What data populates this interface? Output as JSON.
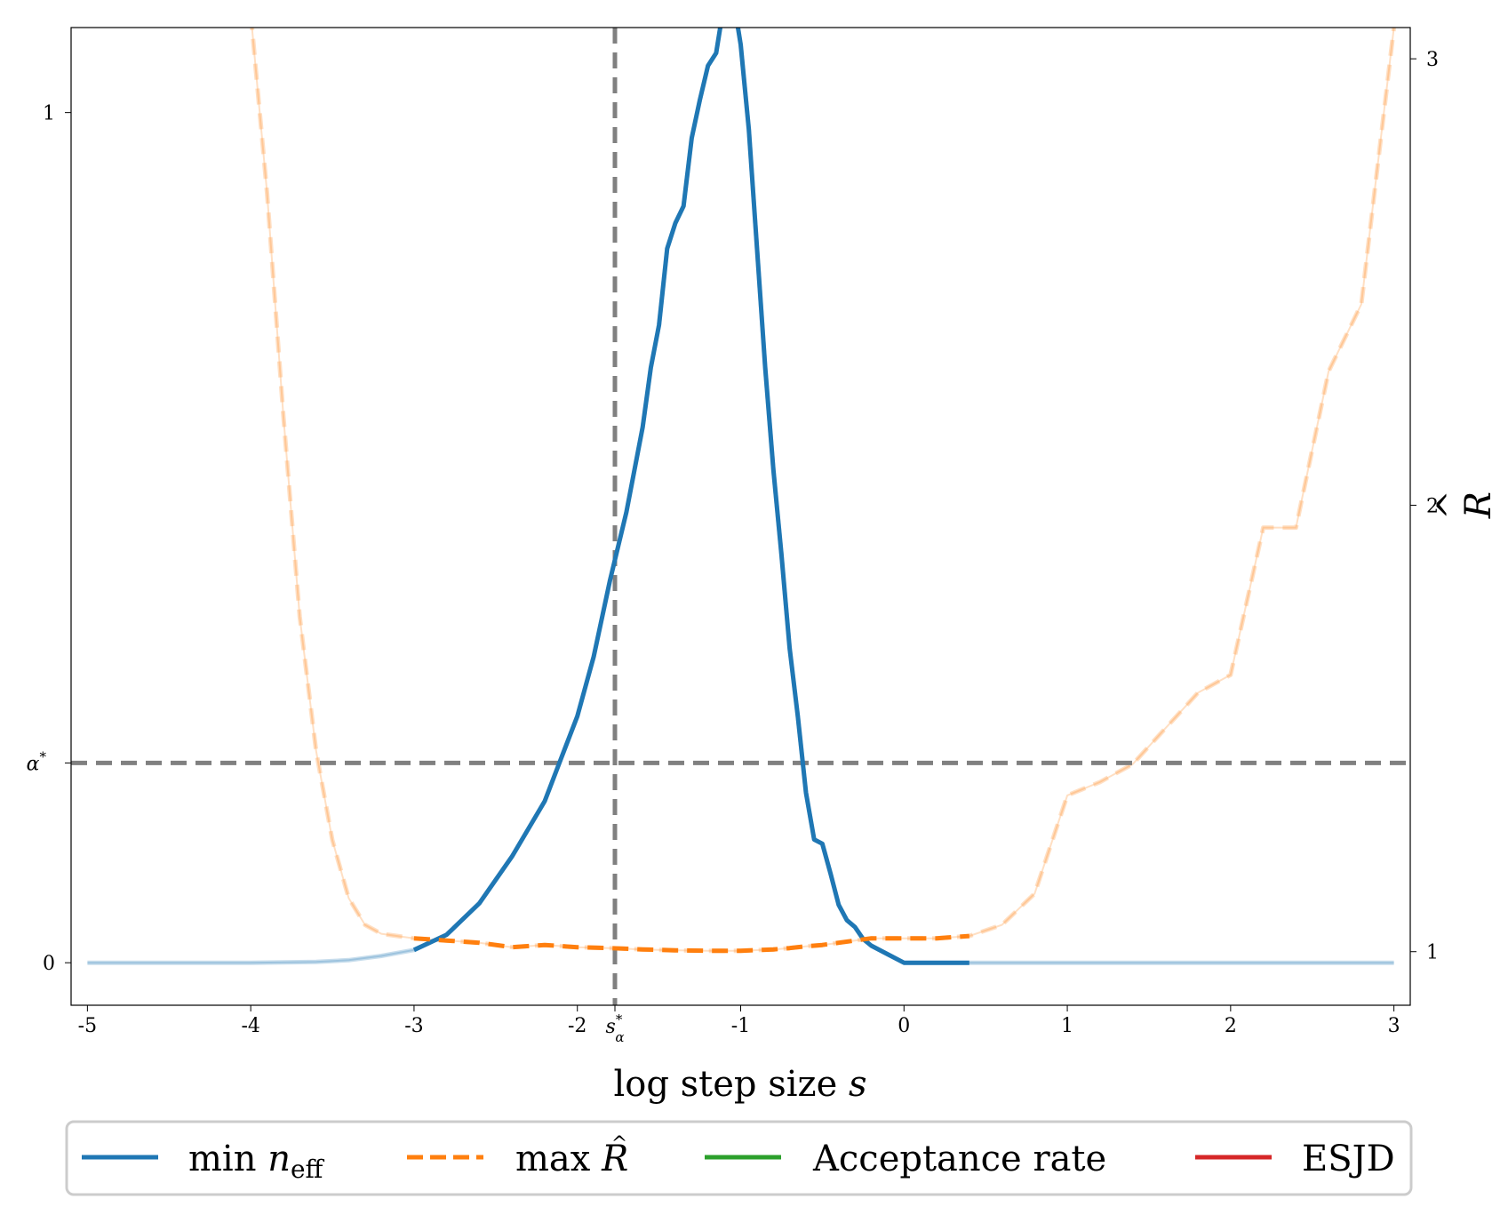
{
  "chart_data": {
    "type": "line",
    "xlabel": "log step size",
    "xlabel_symbol": "s",
    "right_axis_label": "R",
    "x_ticks": [
      "-5",
      "-4",
      "-3",
      "-2",
      "-1",
      "0",
      "1",
      "2",
      "3"
    ],
    "x_special_tick": {
      "value": -1.77,
      "base": "s",
      "sub": "α",
      "sup": "*"
    },
    "left_ticks": [
      "0",
      "1"
    ],
    "left_special_tick": {
      "value": 0.235,
      "base": "α",
      "sup": "*"
    },
    "right_ticks": [
      "1",
      "2",
      "3"
    ],
    "xlim": [
      -5.1,
      3.1
    ],
    "ylim_left": [
      -0.05,
      1.1
    ],
    "ylim_right": [
      0.88,
      3.07
    ],
    "reference_lines": [
      {
        "orientation": "vertical",
        "x": -1.77,
        "style": "dashed",
        "color": "#808080"
      },
      {
        "orientation": "horizontal",
        "y": 0.235,
        "style": "dashed",
        "color": "#808080"
      }
    ],
    "colors": {
      "neff": "#1f77b4",
      "rhat": "#ff7f0e",
      "acceptance": "#2ca02c",
      "esjd": "#d62728"
    },
    "legend": {
      "placement": "bottom",
      "entries": [
        {
          "text": "min ",
          "math": "n",
          "sub": "eff",
          "color": "#1f77b4",
          "style": "solid"
        },
        {
          "text": "max ",
          "math": "R",
          "hat": true,
          "color": "#ff7f0e",
          "style": "dashed"
        },
        {
          "text": "Acceptance rate",
          "color": "#2ca02c",
          "style": "solid"
        },
        {
          "text": "ESJD",
          "color": "#d62728",
          "style": "solid"
        }
      ]
    },
    "series": [
      {
        "name": "min n_eff",
        "axis": "left",
        "highlight_x_range": [
          -3.0,
          0.4
        ],
        "x": [
          -5.0,
          -4.0,
          -3.6,
          -3.4,
          -3.2,
          -3.0,
          -2.8,
          -2.6,
          -2.4,
          -2.2,
          -2.1,
          -2.0,
          -1.9,
          -1.8,
          -1.7,
          -1.6,
          -1.55,
          -1.5,
          -1.45,
          -1.4,
          -1.35,
          -1.3,
          -1.25,
          -1.2,
          -1.15,
          -1.1,
          -1.05,
          -1.0,
          -0.95,
          -0.9,
          -0.85,
          -0.8,
          -0.75,
          -0.7,
          -0.65,
          -0.6,
          -0.55,
          -0.5,
          -0.45,
          -0.4,
          -0.35,
          -0.3,
          -0.25,
          -0.2,
          -0.1,
          0.0,
          0.2,
          0.4,
          0.8,
          1.5,
          3.0
        ],
        "y": [
          0.0,
          0.0,
          0.001,
          0.003,
          0.008,
          0.015,
          0.033,
          0.07,
          0.125,
          0.19,
          0.24,
          0.29,
          0.36,
          0.45,
          0.53,
          0.63,
          0.7,
          0.75,
          0.84,
          0.87,
          0.89,
          0.97,
          1.015,
          1.055,
          1.07,
          1.13,
          1.14,
          1.08,
          0.98,
          0.84,
          0.7,
          0.58,
          0.48,
          0.37,
          0.29,
          0.2,
          0.145,
          0.14,
          0.105,
          0.068,
          0.05,
          0.042,
          0.028,
          0.02,
          0.01,
          0.0,
          0.0,
          0.0,
          0.0,
          0.0,
          0.0
        ],
        "y_lower": [
          0.0,
          0.0,
          0.001,
          0.003,
          0.008,
          0.015,
          0.033,
          0.07,
          0.125,
          0.19,
          0.24,
          0.29,
          0.36,
          0.45,
          0.53,
          0.63,
          0.7,
          0.75,
          0.84,
          0.87,
          0.89,
          0.97,
          1.015,
          1.055,
          1.07,
          1.13,
          1.14,
          1.08,
          0.98,
          0.84,
          0.7,
          0.58,
          0.48,
          0.37,
          0.29,
          0.2,
          0.145,
          0.14,
          0.105,
          0.068,
          0.05,
          0.042,
          0.028,
          0.02,
          0.01,
          0.0,
          0.0,
          0.0,
          0.0,
          0.0,
          0.0
        ],
        "y_upper": [
          0.0,
          0.0,
          0.001,
          0.003,
          0.008,
          0.015,
          0.033,
          0.07,
          0.125,
          0.19,
          0.24,
          0.29,
          0.36,
          0.45,
          0.53,
          0.63,
          0.7,
          0.75,
          0.84,
          0.87,
          0.89,
          0.97,
          1.015,
          1.055,
          1.07,
          1.13,
          1.14,
          1.08,
          0.98,
          0.84,
          0.7,
          0.58,
          0.48,
          0.37,
          0.29,
          0.2,
          0.145,
          0.14,
          0.105,
          0.068,
          0.05,
          0.042,
          0.028,
          0.02,
          0.01,
          0.0,
          0.0,
          0.0,
          0.0,
          0.0,
          0.0
        ]
      },
      {
        "name": "max R",
        "axis": "right",
        "highlight_x_range": [
          -3.0,
          0.4
        ],
        "x": [
          -4.0,
          -3.9,
          -3.8,
          -3.7,
          -3.6,
          -3.5,
          -3.4,
          -3.3,
          -3.2,
          -3.0,
          -2.8,
          -2.6,
          -2.4,
          -2.2,
          -2.0,
          -1.8,
          -1.6,
          -1.4,
          -1.2,
          -1.0,
          -0.8,
          -0.7,
          -0.6,
          -0.5,
          -0.4,
          -0.3,
          -0.2,
          0.0,
          0.2,
          0.4,
          0.6,
          0.8,
          1.0,
          1.2,
          1.4,
          1.6,
          1.8,
          2.0,
          2.2,
          2.4,
          2.6,
          2.8,
          3.0
        ],
        "y": [
          3.1,
          2.7,
          2.2,
          1.75,
          1.45,
          1.25,
          1.12,
          1.06,
          1.04,
          1.03,
          1.025,
          1.02,
          1.01,
          1.015,
          1.01,
          1.008,
          1.005,
          1.003,
          1.002,
          1.002,
          1.005,
          1.008,
          1.012,
          1.015,
          1.02,
          1.025,
          1.03,
          1.03,
          1.03,
          1.035,
          1.06,
          1.13,
          1.35,
          1.38,
          1.42,
          1.5,
          1.58,
          1.62,
          1.95,
          1.95,
          2.3,
          2.45,
          3.07
        ],
        "y_lower": [
          3.1,
          2.7,
          2.2,
          1.75,
          1.45,
          1.25,
          1.12,
          1.06,
          1.04,
          1.03,
          1.025,
          1.02,
          1.01,
          1.015,
          1.01,
          1.008,
          1.005,
          1.003,
          1.002,
          1.002,
          1.005,
          1.008,
          1.012,
          1.015,
          1.02,
          1.025,
          1.03,
          1.03,
          1.03,
          1.035,
          1.06,
          1.13,
          1.35,
          1.38,
          1.42,
          1.5,
          1.58,
          1.62,
          1.95,
          1.95,
          2.3,
          2.45,
          3.07
        ],
        "y_upper": [
          3.1,
          2.7,
          2.2,
          1.75,
          1.45,
          1.25,
          1.12,
          1.06,
          1.04,
          1.03,
          1.025,
          1.02,
          1.01,
          1.015,
          1.01,
          1.008,
          1.005,
          1.003,
          1.002,
          1.002,
          1.005,
          1.008,
          1.012,
          1.015,
          1.02,
          1.025,
          1.03,
          1.03,
          1.03,
          1.035,
          1.06,
          1.13,
          1.35,
          1.38,
          1.42,
          1.5,
          1.58,
          1.62,
          1.95,
          1.95,
          2.3,
          2.45,
          3.07
        ]
      }
    ]
  }
}
